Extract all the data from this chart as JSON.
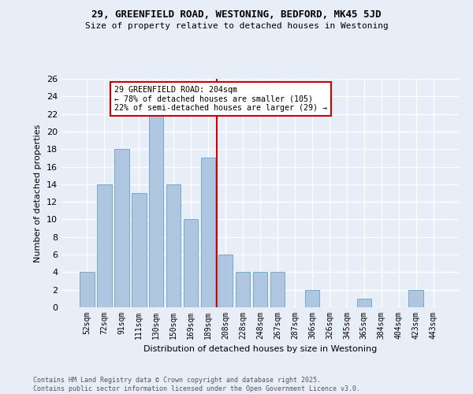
{
  "title1": "29, GREENFIELD ROAD, WESTONING, BEDFORD, MK45 5JD",
  "title2": "Size of property relative to detached houses in Westoning",
  "xlabel": "Distribution of detached houses by size in Westoning",
  "ylabel": "Number of detached properties",
  "categories": [
    "52sqm",
    "72sqm",
    "91sqm",
    "111sqm",
    "130sqm",
    "150sqm",
    "169sqm",
    "189sqm",
    "208sqm",
    "228sqm",
    "248sqm",
    "267sqm",
    "287sqm",
    "306sqm",
    "326sqm",
    "345sqm",
    "365sqm",
    "384sqm",
    "404sqm",
    "423sqm",
    "443sqm"
  ],
  "values": [
    4,
    14,
    18,
    13,
    22,
    14,
    10,
    17,
    6,
    4,
    4,
    4,
    0,
    2,
    0,
    0,
    1,
    0,
    0,
    2,
    0
  ],
  "bar_color": "#aec6df",
  "bar_edge_color": "#7aaac8",
  "vline_color": "#cc0000",
  "annotation_text": "29 GREENFIELD ROAD: 204sqm\n← 78% of detached houses are smaller (105)\n22% of semi-detached houses are larger (29) →",
  "annotation_box_color": "#ffffff",
  "annotation_box_edge": "#cc0000",
  "ylim": [
    0,
    26
  ],
  "yticks": [
    0,
    2,
    4,
    6,
    8,
    10,
    12,
    14,
    16,
    18,
    20,
    22,
    24,
    26
  ],
  "background_color": "#e8eef8",
  "grid_color": "#ffffff",
  "footer": "Contains HM Land Registry data © Crown copyright and database right 2025.\nContains public sector information licensed under the Open Government Licence v3.0."
}
